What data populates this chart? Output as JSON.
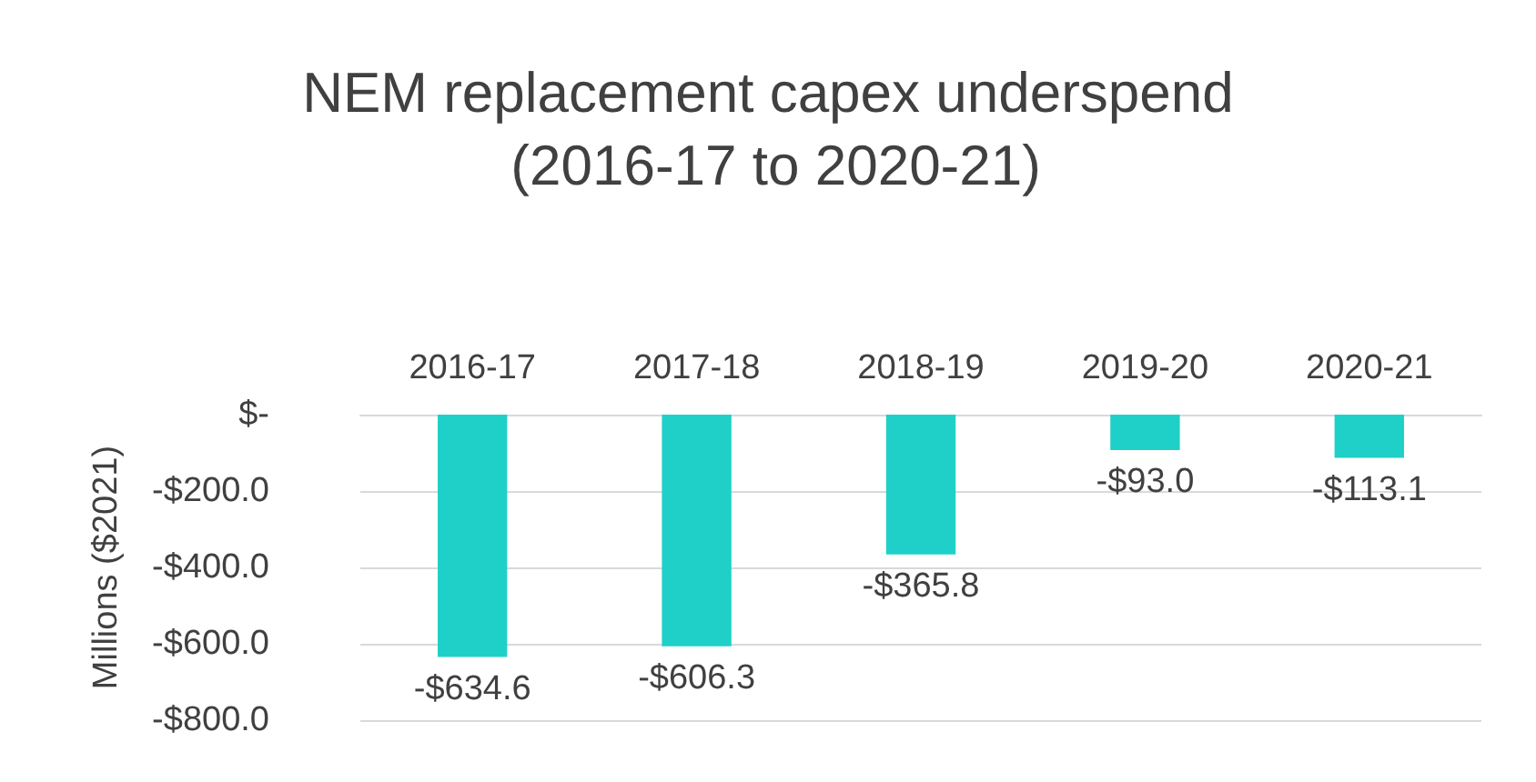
{
  "chart_data": {
    "type": "bar",
    "title": "NEM replacement capex underspend (2016-17 to 2020-21)",
    "ylabel": "Millions ($2021)",
    "categories": [
      "2016-17",
      "2017-18",
      "2018-19",
      "2019-20",
      "2020-21"
    ],
    "values": [
      -634.6,
      -606.3,
      -365.8,
      -93.0,
      -113.1
    ],
    "color": "#1fd0c9",
    "value_labels": [
      "-$634.6",
      "-$606.3",
      "-$365.8",
      "-$93.0",
      "-$113.1"
    ],
    "ylim": [
      -800,
      0
    ],
    "yticks": [
      {
        "value": -800,
        "label": "-$800.0"
      },
      {
        "value": -600,
        "label": "-$600.0"
      },
      {
        "value": -400,
        "label": "-$400.0"
      },
      {
        "value": -200,
        "label": "-$200.0"
      },
      {
        "value": 0,
        "label": "$-"
      }
    ],
    "grid": "y"
  }
}
